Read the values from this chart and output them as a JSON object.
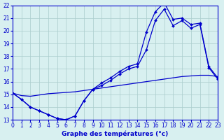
{
  "title": "Graphe des températures (°c)",
  "background_color": "#d8f0f0",
  "grid_color": "#aacccc",
  "line_color": "#0000cc",
  "xlim": [
    0,
    23
  ],
  "ylim": [
    13,
    22
  ],
  "xticks": [
    0,
    1,
    2,
    3,
    4,
    5,
    6,
    7,
    8,
    9,
    10,
    11,
    12,
    13,
    14,
    15,
    16,
    17,
    18,
    19,
    20,
    21,
    22,
    23
  ],
  "yticks": [
    13,
    14,
    15,
    16,
    17,
    18,
    19,
    20,
    21,
    22
  ],
  "line1_x": [
    0,
    1,
    2,
    3,
    4,
    5,
    6,
    7,
    8,
    9,
    10,
    11,
    12,
    13,
    14,
    15,
    16,
    17,
    18,
    19,
    20,
    21,
    22,
    23
  ],
  "line1_y": [
    15.1,
    14.6,
    14.0,
    13.7,
    13.4,
    13.1,
    13.0,
    13.3,
    14.5,
    15.4,
    15.9,
    16.3,
    16.8,
    17.2,
    17.4,
    19.9,
    21.5,
    22.2,
    20.9,
    21.0,
    20.5,
    20.6,
    17.2,
    16.3
  ],
  "line2_x": [
    0,
    1,
    2,
    3,
    4,
    5,
    6,
    7,
    8,
    9,
    10,
    11,
    12,
    13,
    14,
    15,
    16,
    17,
    18,
    19,
    20,
    21,
    22,
    23
  ],
  "line2_y": [
    15.1,
    14.6,
    14.0,
    13.7,
    13.4,
    13.1,
    13.0,
    13.3,
    14.5,
    15.4,
    15.7,
    16.1,
    16.6,
    17.0,
    17.2,
    18.5,
    20.8,
    21.7,
    20.4,
    20.8,
    20.2,
    20.5,
    17.1,
    16.2
  ],
  "line3_x": [
    0,
    1,
    2,
    3,
    4,
    5,
    6,
    7,
    8,
    9,
    10,
    11,
    12,
    13,
    14,
    15,
    16,
    17,
    18,
    19,
    20,
    21,
    22,
    23
  ],
  "line3_y": [
    15.1,
    14.9,
    14.85,
    14.95,
    15.05,
    15.1,
    15.15,
    15.2,
    15.3,
    15.4,
    15.5,
    15.6,
    15.7,
    15.8,
    15.9,
    16.0,
    16.1,
    16.2,
    16.3,
    16.4,
    16.45,
    16.5,
    16.5,
    16.4
  ]
}
